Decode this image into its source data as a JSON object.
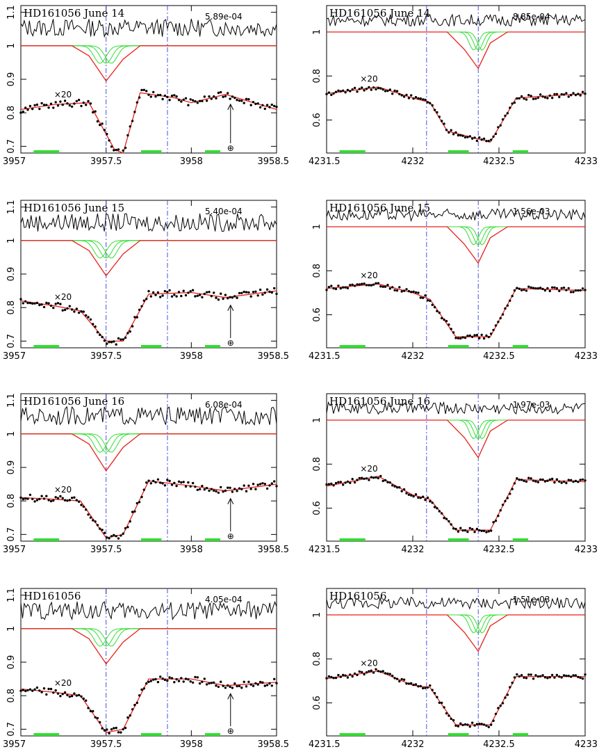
{
  "chart_data": [
    {
      "type": "line",
      "title": "HD161056 June 14",
      "residual_label": "5.89e-04",
      "scale_label": "×20",
      "x_ticks": [
        "3957",
        "3957.5",
        "3958",
        "3958.5"
      ],
      "xlim": [
        3957,
        3958.5
      ],
      "y_ticks": [
        "0.7",
        "0.8",
        "0.9",
        "1",
        "1.1"
      ],
      "ylim": [
        0.68,
        1.12
      ],
      "telluric_marker": "⊕",
      "series": [
        {
          "values": [
            [
              3957.0,
              1.0
            ],
            [
              3957.3,
              1.0
            ],
            [
              3957.4,
              0.97
            ],
            [
              3957.5,
              0.895
            ],
            [
              3957.6,
              0.96
            ],
            [
              3957.7,
              1.0
            ],
            [
              3958.5,
              1.0
            ]
          ]
        },
        {
          "values": [
            [
              3957.0,
              0.81
            ],
            [
              3957.2,
              0.825
            ],
            [
              3957.4,
              0.83
            ],
            [
              3957.55,
              0.69
            ],
            [
              3957.6,
              0.68
            ],
            [
              3957.7,
              0.86
            ],
            [
              3957.9,
              0.845
            ],
            [
              3958.0,
              0.83
            ],
            [
              3958.2,
              0.855
            ],
            [
              3958.5,
              0.81
            ]
          ]
        }
      ],
      "vlines": [
        3957.5,
        3957.86
      ]
    },
    {
      "type": "line",
      "title": "HD161056 June 14",
      "residual_label": "8.85e-04",
      "scale_label": "×20",
      "x_ticks": [
        "4231.5",
        "4232",
        "4232.5",
        "4233"
      ],
      "xlim": [
        4231.5,
        4233
      ],
      "y_ticks": [
        "0.6",
        "0.8",
        "1"
      ],
      "ylim": [
        0.45,
        1.12
      ],
      "series": [
        {
          "values": [
            [
              4231.5,
              1.0
            ],
            [
              4232.2,
              1.0
            ],
            [
              4232.3,
              0.92
            ],
            [
              4232.38,
              0.835
            ],
            [
              4232.45,
              0.95
            ],
            [
              4232.55,
              1.0
            ],
            [
              4233.0,
              1.0
            ]
          ]
        },
        {
          "values": [
            [
              4231.5,
              0.72
            ],
            [
              4231.8,
              0.75
            ],
            [
              4232.0,
              0.7
            ],
            [
              4232.1,
              0.68
            ],
            [
              4232.2,
              0.55
            ],
            [
              4232.45,
              0.5
            ],
            [
              4232.6,
              0.7
            ],
            [
              4233.0,
              0.72
            ]
          ]
        }
      ],
      "vlines": [
        4232.08,
        4232.38
      ]
    },
    {
      "type": "line",
      "title": "HD161056 June 15",
      "residual_label": "5.40e-04",
      "scale_label": "×20",
      "x_ticks": [
        "3957",
        "3957.5",
        "3958",
        "3958.5"
      ],
      "xlim": [
        3957,
        3958.5
      ],
      "y_ticks": [
        "0.7",
        "0.8",
        "0.9",
        "1",
        "1.1"
      ],
      "ylim": [
        0.68,
        1.12
      ],
      "telluric_marker": "⊕",
      "series": [
        {
          "values": [
            [
              3957.0,
              1.0
            ],
            [
              3957.3,
              1.0
            ],
            [
              3957.4,
              0.97
            ],
            [
              3957.5,
              0.895
            ],
            [
              3957.6,
              0.96
            ],
            [
              3957.7,
              1.0
            ],
            [
              3958.5,
              1.0
            ]
          ]
        },
        {
          "values": [
            [
              3957.0,
              0.82
            ],
            [
              3957.2,
              0.805
            ],
            [
              3957.35,
              0.79
            ],
            [
              3957.5,
              0.7
            ],
            [
              3957.6,
              0.7
            ],
            [
              3957.75,
              0.84
            ],
            [
              3958.0,
              0.845
            ],
            [
              3958.2,
              0.83
            ],
            [
              3958.5,
              0.85
            ]
          ]
        }
      ],
      "vlines": [
        3957.5,
        3957.86
      ]
    },
    {
      "type": "line",
      "title": "HD161056 June 15",
      "residual_label": "1.56e-03",
      "scale_label": "×20",
      "x_ticks": [
        "4231.5",
        "4232",
        "4232.5",
        "4233"
      ],
      "xlim": [
        4231.5,
        4233
      ],
      "y_ticks": [
        "0.6",
        "0.8",
        "1"
      ],
      "ylim": [
        0.45,
        1.12
      ],
      "series": [
        {
          "values": [
            [
              4231.5,
              1.0
            ],
            [
              4232.2,
              1.0
            ],
            [
              4232.3,
              0.92
            ],
            [
              4232.38,
              0.835
            ],
            [
              4232.45,
              0.95
            ],
            [
              4232.55,
              1.0
            ],
            [
              4233.0,
              1.0
            ]
          ]
        },
        {
          "values": [
            [
              4231.5,
              0.72
            ],
            [
              4231.8,
              0.74
            ],
            [
              4232.0,
              0.7
            ],
            [
              4232.1,
              0.67
            ],
            [
              4232.25,
              0.5
            ],
            [
              4232.45,
              0.5
            ],
            [
              4232.6,
              0.72
            ],
            [
              4233.0,
              0.71
            ]
          ]
        }
      ],
      "vlines": [
        4232.08,
        4232.38
      ]
    },
    {
      "type": "line",
      "title": "HD161056 June 16",
      "residual_label": "6.08e-04",
      "scale_label": "×20",
      "x_ticks": [
        "3957",
        "3957.5",
        "3958",
        "3958.5"
      ],
      "xlim": [
        3957,
        3958.5
      ],
      "y_ticks": [
        "0.7",
        "0.8",
        "0.9",
        "1",
        "1.1"
      ],
      "ylim": [
        0.68,
        1.12
      ],
      "telluric_marker": "⊕",
      "series": [
        {
          "values": [
            [
              3957.0,
              1.0
            ],
            [
              3957.3,
              1.0
            ],
            [
              3957.4,
              0.97
            ],
            [
              3957.5,
              0.89
            ],
            [
              3957.6,
              0.96
            ],
            [
              3957.7,
              1.0
            ],
            [
              3958.5,
              1.0
            ]
          ]
        },
        {
          "values": [
            [
              3957.0,
              0.81
            ],
            [
              3957.2,
              0.805
            ],
            [
              3957.35,
              0.8
            ],
            [
              3957.5,
              0.69
            ],
            [
              3957.6,
              0.7
            ],
            [
              3957.75,
              0.86
            ],
            [
              3958.0,
              0.845
            ],
            [
              3958.2,
              0.83
            ],
            [
              3958.5,
              0.85
            ]
          ]
        }
      ],
      "vlines": [
        3957.5,
        3957.86
      ]
    },
    {
      "type": "line",
      "title": "HD161056 June 16",
      "residual_label": "1.97e-03",
      "scale_label": "×20",
      "x_ticks": [
        "4231.5",
        "4232",
        "4232.5",
        "4233"
      ],
      "xlim": [
        4231.5,
        4233
      ],
      "y_ticks": [
        "0.6",
        "0.8",
        "1"
      ],
      "ylim": [
        0.45,
        1.12
      ],
      "series": [
        {
          "values": [
            [
              4231.5,
              1.0
            ],
            [
              4232.2,
              1.0
            ],
            [
              4232.3,
              0.92
            ],
            [
              4232.38,
              0.83
            ],
            [
              4232.45,
              0.95
            ],
            [
              4232.55,
              1.0
            ],
            [
              4233.0,
              1.0
            ]
          ]
        },
        {
          "values": [
            [
              4231.5,
              0.7
            ],
            [
              4231.8,
              0.745
            ],
            [
              4232.0,
              0.66
            ],
            [
              4232.1,
              0.64
            ],
            [
              4232.25,
              0.5
            ],
            [
              4232.45,
              0.5
            ],
            [
              4232.6,
              0.73
            ],
            [
              4233.0,
              0.72
            ]
          ]
        }
      ],
      "vlines": [
        4232.08,
        4232.38
      ]
    },
    {
      "type": "line",
      "title": "HD161056",
      "residual_label": "4.05e-04",
      "scale_label": "×20",
      "x_ticks": [
        "3957",
        "3957.5",
        "3958",
        "3958.5"
      ],
      "xlim": [
        3957,
        3958.5
      ],
      "y_ticks": [
        "0.7",
        "0.8",
        "0.9",
        "1",
        "1.1"
      ],
      "ylim": [
        0.68,
        1.12
      ],
      "telluric_marker": "⊕",
      "series": [
        {
          "values": [
            [
              3957.0,
              1.0
            ],
            [
              3957.3,
              1.0
            ],
            [
              3957.4,
              0.97
            ],
            [
              3957.5,
              0.895
            ],
            [
              3957.6,
              0.96
            ],
            [
              3957.7,
              1.0
            ],
            [
              3958.5,
              1.0
            ]
          ]
        },
        {
          "values": [
            [
              3957.0,
              0.82
            ],
            [
              3957.2,
              0.81
            ],
            [
              3957.35,
              0.8
            ],
            [
              3957.5,
              0.69
            ],
            [
              3957.6,
              0.7
            ],
            [
              3957.75,
              0.85
            ],
            [
              3958.0,
              0.85
            ],
            [
              3958.2,
              0.83
            ],
            [
              3958.5,
              0.84
            ]
          ]
        }
      ],
      "vlines": [
        3957.5,
        3957.86
      ]
    },
    {
      "type": "line",
      "title": "HD161056",
      "residual_label": "1.51e-03",
      "scale_label": "×20",
      "x_ticks": [
        "4231.5",
        "4232",
        "4232.5",
        "4233"
      ],
      "xlim": [
        4231.5,
        4233
      ],
      "y_ticks": [
        "0.6",
        "0.8",
        "1"
      ],
      "ylim": [
        0.45,
        1.12
      ],
      "series": [
        {
          "values": [
            [
              4231.5,
              1.0
            ],
            [
              4232.2,
              1.0
            ],
            [
              4232.3,
              0.92
            ],
            [
              4232.38,
              0.835
            ],
            [
              4232.45,
              0.95
            ],
            [
              4232.55,
              1.0
            ],
            [
              4233.0,
              1.0
            ]
          ]
        },
        {
          "values": [
            [
              4231.5,
              0.71
            ],
            [
              4231.8,
              0.745
            ],
            [
              4232.0,
              0.68
            ],
            [
              4232.1,
              0.67
            ],
            [
              4232.25,
              0.5
            ],
            [
              4232.45,
              0.5
            ],
            [
              4232.6,
              0.72
            ],
            [
              4233.0,
              0.72
            ]
          ]
        }
      ],
      "vlines": [
        4232.08,
        4232.38
      ]
    }
  ],
  "colors": {
    "model": "#e8201a",
    "components": "#33dd33",
    "data_points": "#000000",
    "reference_lines": "#4a50d8",
    "axes": "#000000"
  }
}
